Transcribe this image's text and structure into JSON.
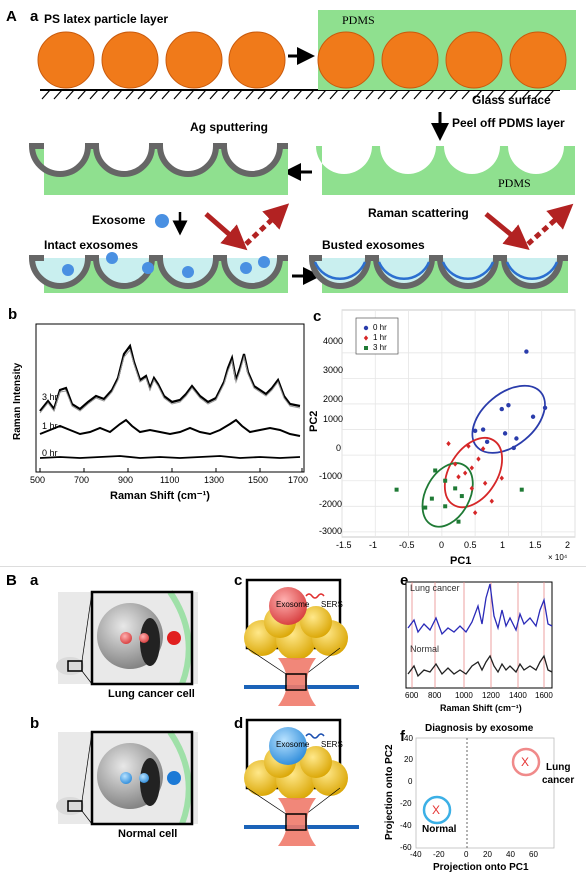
{
  "panel_A": {
    "label": "A",
    "sub_a": "a",
    "ps_layer": "PS latex particle layer",
    "pdms_top": "PDMS",
    "glass": "Glass surface",
    "peel": "Peel off PDMS layer",
    "ag": "Ag sputtering",
    "pdms_mid": "PDMS",
    "exosome": "Exosome",
    "raman_scattering": "Raman scattering",
    "intact": "Intact exosomes",
    "busted": "Busted exosomes",
    "colors": {
      "ps": "#f07a1a",
      "pdms": "#8fe08f",
      "ag": "#666666",
      "exo": "#4a90e2",
      "arrow": "#b22222"
    }
  },
  "panel_b": {
    "label": "b",
    "ylabel": "Raman Intensity",
    "xlabel": "Raman Shift (cm⁻¹)",
    "trace_labels": [
      "3 hr",
      "1 hr",
      "0 hr"
    ],
    "xticks": [
      "500",
      "700",
      "900",
      "1100",
      "1300",
      "1500",
      "1700"
    ]
  },
  "panel_c": {
    "label": "c",
    "ylabel": "PC2",
    "xlabel": "PC1",
    "xexp": "× 10⁴",
    "legend": [
      "0 hr",
      "1 hr",
      "3 hr"
    ],
    "xticks": [
      "-1.5",
      "-1",
      "-0.5",
      "0",
      "0.5",
      "1",
      "1.5",
      "2"
    ],
    "yticks": [
      "4000",
      "3000",
      "2000",
      "1000",
      "0",
      "-1000",
      "-2000",
      "-3000"
    ],
    "colors": {
      "h0": "#2a3cab",
      "h1": "#d62728",
      "h3": "#1f7a35"
    }
  },
  "chart_data": {
    "type": "scatter",
    "title": "",
    "xlabel": "PC1",
    "ylabel": "PC2",
    "xlim": [
      -1.5,
      2
    ],
    "ylim": [
      -3200,
      4500
    ],
    "series": [
      {
        "name": "0 hr",
        "x": [
          1.27,
          1.55,
          0.62,
          1.0,
          1.37,
          0.9,
          0.95,
          1.12,
          1.08,
          0.5,
          0.68
        ],
        "y": [
          4050,
          1850,
          1000,
          1950,
          1500,
          1800,
          850,
          650,
          280,
          950,
          520
        ]
      },
      {
        "name": "1 hr",
        "x": [
          0.1,
          0.4,
          0.55,
          0.35,
          0.25,
          0.65,
          0.45,
          0.9,
          0.75,
          0.5,
          0.2,
          0.62,
          0.45
        ],
        "y": [
          450,
          350,
          -150,
          -700,
          -850,
          -1100,
          -1300,
          -900,
          -1800,
          -2250,
          -350,
          250,
          -500
        ]
      },
      {
        "name": "3 hr",
        "x": [
          -0.68,
          -0.1,
          0.05,
          -0.15,
          0.2,
          -0.25,
          0.3,
          0.25,
          0.05,
          1.2
        ],
        "y": [
          -1350,
          -600,
          -1000,
          -1700,
          -1300,
          -2050,
          -1600,
          -2600,
          -2000,
          -1350
        ]
      }
    ]
  },
  "panel_B": {
    "label": "B",
    "sub_a": "a",
    "sub_b": "b",
    "sub_c": "c",
    "sub_d": "d",
    "sub_e": "e",
    "sub_f": "f",
    "lung_cell": "Lung cancer cell",
    "normal_cell": "Normal cell",
    "exosome_c": "Exosome",
    "sers_c": "SERS",
    "exosome_d": "Exosome",
    "sers_d": "SERS",
    "e_lung": "Lung cancer",
    "e_normal": "Normal",
    "e_xlabel": "Raman Shift (cm⁻¹)",
    "e_xticks": [
      "600",
      "800",
      "1000",
      "1200",
      "1400",
      "1600"
    ],
    "f_title": "Diagnosis by exosome",
    "f_xlabel": "Projection onto PC1",
    "f_ylabel": "Projection onto PC2",
    "f_lung": "Lung\ncancer",
    "f_lung_1": "Lung",
    "f_lung_2": "cancer",
    "f_normal": "Normal",
    "f_xticks": [
      "-40",
      "-20",
      "0",
      "20",
      "40",
      "60"
    ],
    "f_yticks": [
      "40",
      "20",
      "0",
      "-20",
      "-40",
      "-60"
    ],
    "f_marker": "X"
  }
}
